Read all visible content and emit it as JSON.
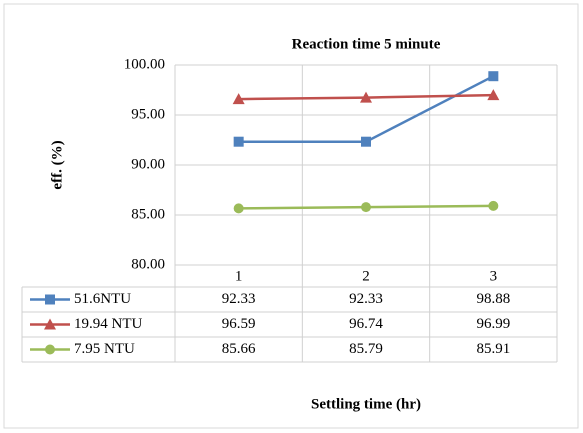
{
  "chart_data": {
    "type": "line",
    "title": "Reaction time 5 minute",
    "y_label": "eff. (%)",
    "x_label": "Settling time (hr)",
    "categories": [
      "1",
      "2",
      "3"
    ],
    "series": [
      {
        "name": "51.6NTU",
        "color": "#4f81bd",
        "marker": "square",
        "values": [
          92.33,
          92.33,
          98.88
        ]
      },
      {
        "name": "19.94 NTU",
        "color": "#c0504d",
        "marker": "triangle",
        "values": [
          96.59,
          96.74,
          96.99
        ]
      },
      {
        "name": "7.95 NTU",
        "color": "#9bbb59",
        "marker": "circle",
        "values": [
          85.66,
          85.79,
          85.91
        ]
      }
    ],
    "ylim": [
      80,
      100
    ],
    "yticks": [
      {
        "value": 80,
        "label": "80.00"
      },
      {
        "value": 85,
        "label": "85.00"
      },
      {
        "value": 90,
        "label": "90.00"
      },
      {
        "value": 95,
        "label": "95.00"
      },
      {
        "value": 100,
        "label": "100.00"
      }
    ],
    "grid": true
  }
}
